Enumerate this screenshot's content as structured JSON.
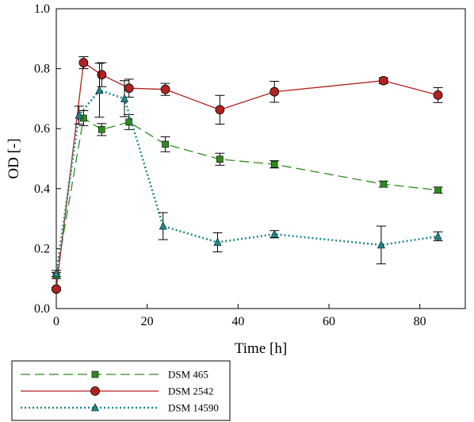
{
  "chart_data": {
    "type": "line",
    "xlabel": "Time [h]",
    "ylabel": "OD [-]",
    "xlim": [
      0,
      90
    ],
    "ylim": [
      0.0,
      1.0
    ],
    "xticks": [
      0,
      20,
      40,
      60,
      80
    ],
    "xtick_labels": [
      "0",
      "20",
      "40",
      "60",
      "80"
    ],
    "yticks": [
      0.0,
      0.2,
      0.4,
      0.6,
      0.8,
      1.0
    ],
    "ytick_labels": [
      "0.0",
      "0.2",
      "0.4",
      "0.6",
      "0.8",
      "1.0"
    ],
    "grid": false,
    "legend_position": "below plot, bottom-left",
    "series": [
      {
        "name": "DSM 465",
        "color": "#2e8b1e",
        "line_style": "long-dash",
        "marker": "square",
        "x": [
          0,
          6,
          10,
          16,
          24,
          36,
          48,
          72,
          84
        ],
        "y": [
          0.11,
          0.635,
          0.597,
          0.622,
          0.548,
          0.498,
          0.481,
          0.415,
          0.395
        ],
        "err": [
          0.01,
          0.025,
          0.02,
          0.025,
          0.025,
          0.02,
          0.012,
          0.01,
          0.01
        ]
      },
      {
        "name": "DSM 2542",
        "color": "#b22222",
        "line_style": "solid",
        "marker": "circle",
        "x": [
          0,
          6,
          10,
          16,
          24,
          36,
          48,
          72,
          84
        ],
        "y": [
          0.065,
          0.82,
          0.78,
          0.735,
          0.731,
          0.663,
          0.723,
          0.76,
          0.712
        ],
        "err": [
          0.005,
          0.02,
          0.04,
          0.03,
          0.02,
          0.048,
          0.035,
          0.01,
          0.025
        ]
      },
      {
        "name": "DSM 14590",
        "color": "#1f8a8a",
        "line_style": "dotted",
        "marker": "triangle",
        "x": [
          0,
          5,
          9.5,
          15,
          23.5,
          35.5,
          48,
          71.5,
          84
        ],
        "y": [
          0.117,
          0.645,
          0.728,
          0.7,
          0.275,
          0.221,
          0.248,
          0.212,
          0.241
        ],
        "err": [
          0.01,
          0.03,
          0.09,
          0.06,
          0.045,
          0.032,
          0.012,
          0.063,
          0.015
        ]
      }
    ]
  }
}
